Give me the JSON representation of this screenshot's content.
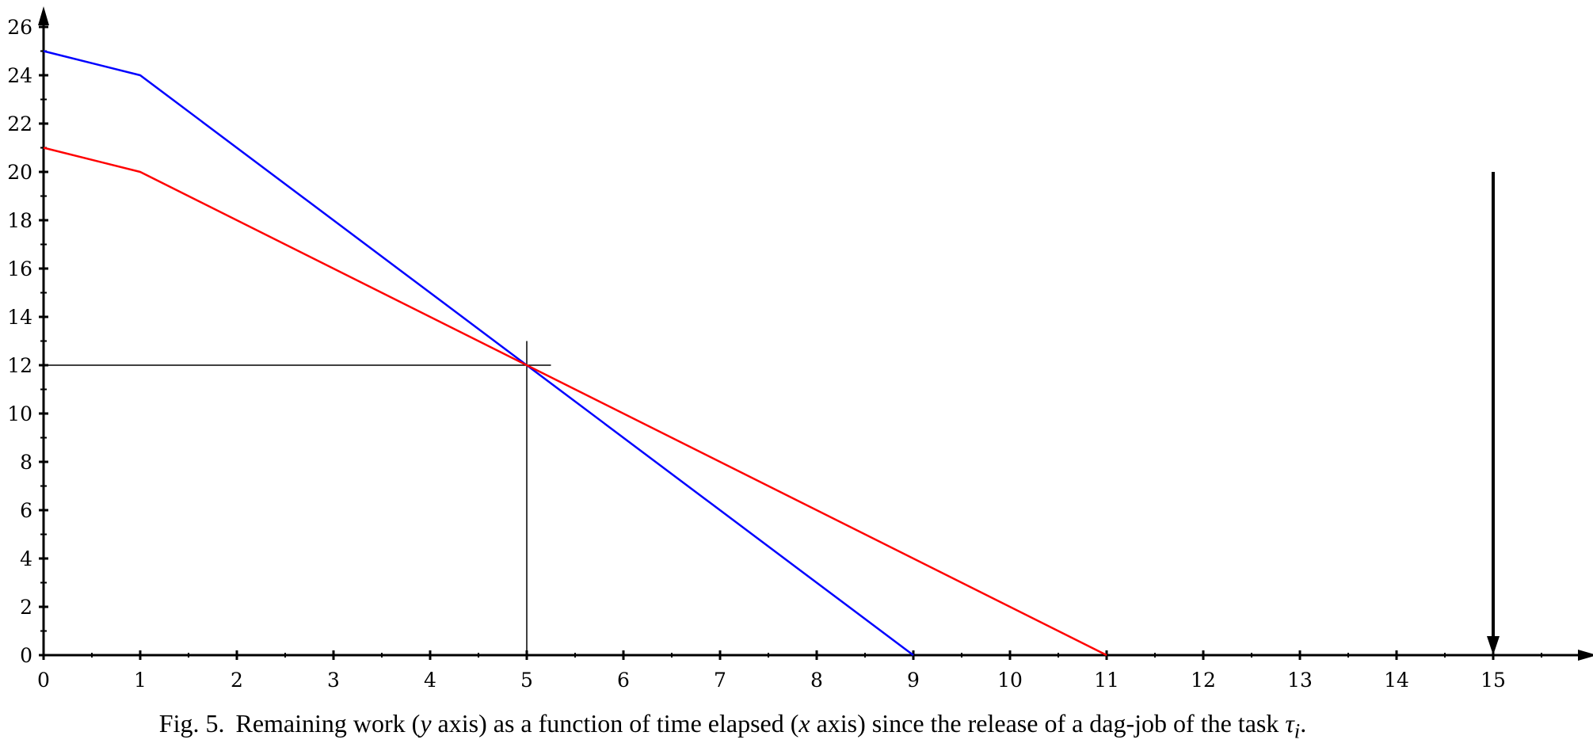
{
  "chart_data": {
    "type": "line",
    "xlim": [
      0,
      16
    ],
    "ylim": [
      0,
      26
    ],
    "x_ticks": [
      0,
      1,
      2,
      3,
      4,
      5,
      6,
      7,
      8,
      9,
      10,
      11,
      12,
      13,
      14,
      15
    ],
    "y_ticks": [
      0,
      2,
      4,
      6,
      8,
      10,
      12,
      14,
      16,
      18,
      20,
      22,
      24,
      26
    ],
    "series": [
      {
        "color": "#0000ff",
        "x": [
          0,
          1,
          9
        ],
        "y": [
          25,
          24,
          0
        ]
      },
      {
        "color": "#ff0000",
        "x": [
          0,
          1,
          11
        ],
        "y": [
          21,
          20,
          0
        ]
      }
    ],
    "annotations": {
      "crosshair": {
        "x": 5,
        "y": 12,
        "x_extent": [
          5,
          5.25
        ],
        "y_extent": [
          0,
          13
        ]
      },
      "deadline_arrow": {
        "x": 15,
        "from_y": 20,
        "to_y": 0
      }
    },
    "grid": false
  },
  "caption": {
    "label": "Fig. 5.",
    "part1": "Remaining work (",
    "var_y": "y",
    "part2": " axis) as a function of time elapsed (",
    "var_x": "x",
    "part3": " axis) since the release of a dag-job of the task ",
    "var_tau": "τ",
    "var_tau_sub": "i",
    "part4": "."
  }
}
